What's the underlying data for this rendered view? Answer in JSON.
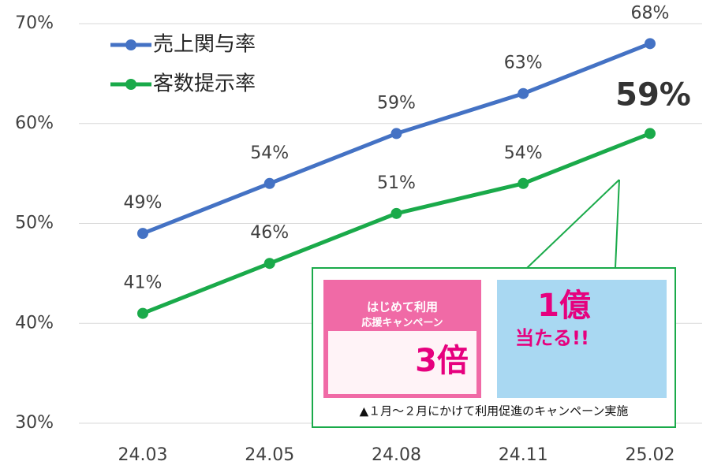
{
  "chart_data": {
    "type": "line",
    "categories": [
      "24.03",
      "24.05",
      "24.08",
      "24.11",
      "25.02"
    ],
    "series": [
      {
        "name": "売上関与率",
        "color": "#4472c4",
        "values": [
          49,
          54,
          59,
          63,
          68
        ],
        "value_labels": [
          "49%",
          "54%",
          "59%",
          "63%",
          "68%"
        ]
      },
      {
        "name": "客数提示率",
        "color": "#1aaa4a",
        "values": [
          41,
          46,
          51,
          54,
          59
        ],
        "value_labels": [
          "41%",
          "46%",
          "51%",
          "54%",
          "59%"
        ]
      }
    ],
    "ylim": [
      30,
      70
    ],
    "yticks": [
      {
        "value": 30,
        "label": "30%"
      },
      {
        "value": 40,
        "label": "40%"
      },
      {
        "value": 50,
        "label": "50%"
      },
      {
        "value": 60,
        "label": "60%"
      },
      {
        "value": 70,
        "label": "70%"
      }
    ],
    "grid": true,
    "legend": "top-left",
    "annotation": {
      "caption": "▲１月～２月にかけて利用促進のキャンペーン実施",
      "ads": [
        "はじめて利用",
        "応援キャンペーン",
        "3倍",
        "1億",
        "当たる!!"
      ]
    }
  }
}
